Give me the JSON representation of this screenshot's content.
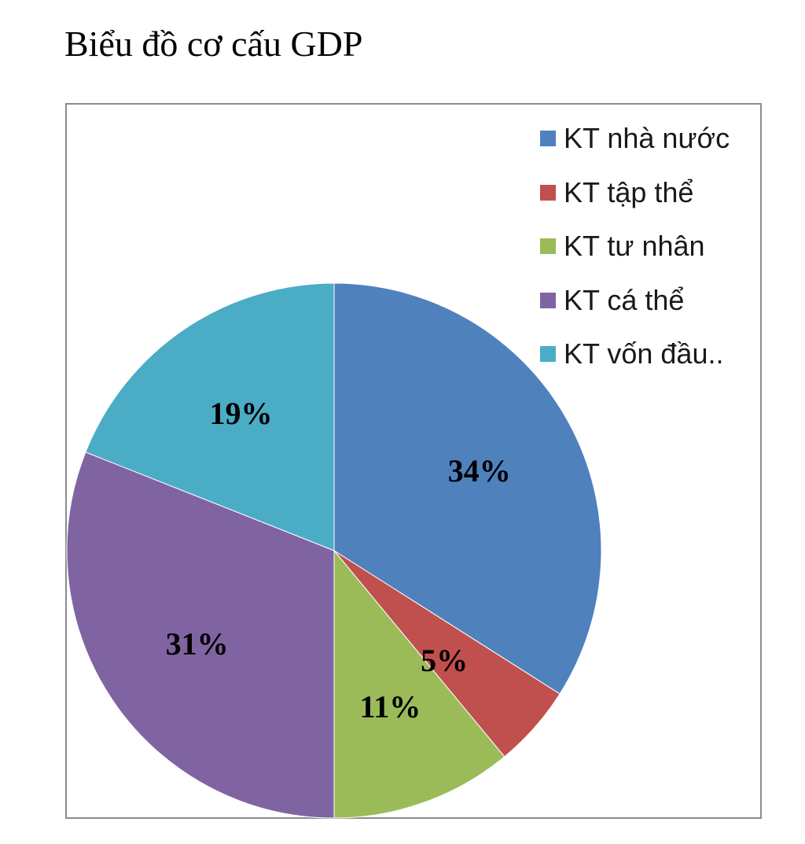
{
  "document": {
    "heading": "Biểu đồ cơ cấu GDP"
  },
  "chart_data": {
    "type": "pie",
    "title": "",
    "categories": [
      "KT nhà nước",
      "KT tập thể",
      "KT tư nhân",
      "KT cá thể",
      "KT vốn đầu.."
    ],
    "values": [
      34,
      5,
      11,
      31,
      19
    ],
    "value_labels": [
      "34%",
      "5%",
      "11%",
      "31%",
      "19%"
    ],
    "colors": [
      "#4f81bd",
      "#c0504d",
      "#9bbb59",
      "#8064a2",
      "#4bacc6"
    ],
    "start_angle_deg": 0,
    "direction": "clockwise",
    "legend_position": "top-right"
  }
}
